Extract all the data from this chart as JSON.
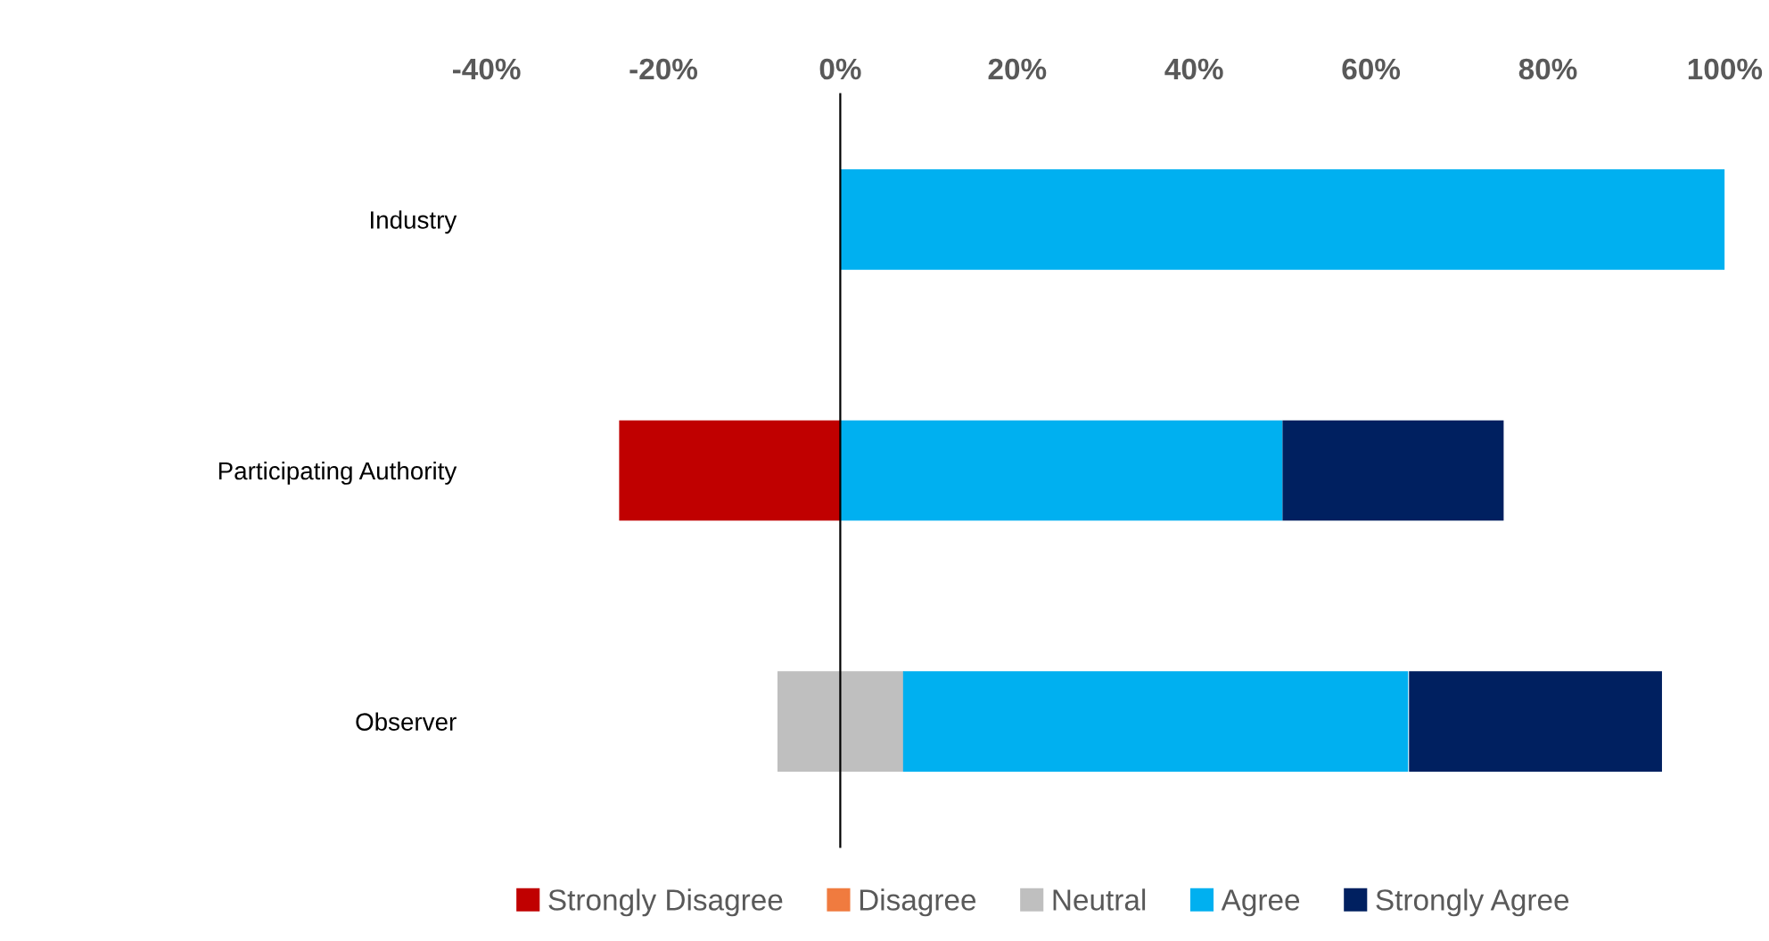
{
  "chart_data": {
    "type": "bar",
    "orientation": "horizontal",
    "categories": [
      "Industry",
      "Participating Authority",
      "Observer"
    ],
    "series": [
      {
        "name": "Strongly Disagree",
        "color": "#c00000",
        "base": [
          null,
          -25,
          null
        ],
        "values": [
          null,
          25,
          null
        ]
      },
      {
        "name": "Disagree",
        "color": "#f07b3f",
        "base": [
          null,
          null,
          null
        ],
        "values": [
          null,
          null,
          null
        ]
      },
      {
        "name": "Neutral",
        "color": "#bfbfbf",
        "base": [
          null,
          null,
          -7.1
        ],
        "values": [
          null,
          null,
          14.3
        ]
      },
      {
        "name": "Agree",
        "color": "#00b0f0",
        "base": [
          0,
          0,
          7.1
        ],
        "values": [
          100,
          50,
          57.1
        ]
      },
      {
        "name": "Strongly Agree",
        "color": "#002060",
        "base": [
          null,
          50,
          64.3
        ],
        "values": [
          null,
          25,
          28.6
        ]
      }
    ],
    "xlim": [
      -40,
      100
    ],
    "xticks": [
      {
        "value": -40,
        "label": "-40%"
      },
      {
        "value": -20,
        "label": "-20%"
      },
      {
        "value": 0,
        "label": "0%"
      },
      {
        "value": 20,
        "label": "20%"
      },
      {
        "value": 40,
        "label": "40%"
      },
      {
        "value": 60,
        "label": "60%"
      },
      {
        "value": 80,
        "label": "80%"
      },
      {
        "value": 100,
        "label": "100%"
      }
    ],
    "legend": "bottom"
  }
}
